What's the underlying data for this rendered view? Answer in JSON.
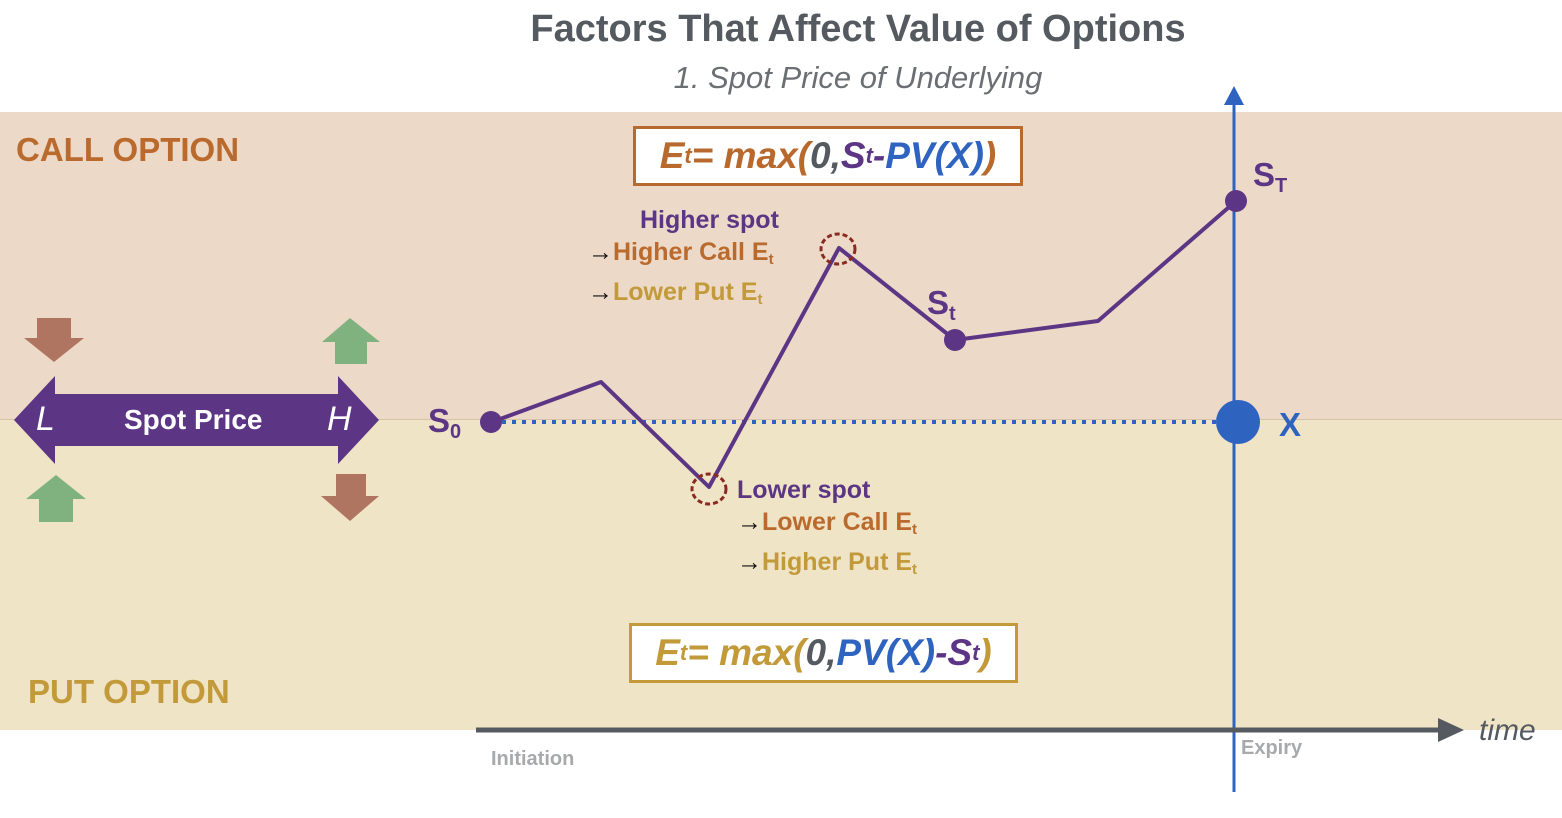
{
  "title": "Factors That Affect Value of Options",
  "subtitle": "1. Spot Price of Underlying",
  "call_zone_label": "CALL OPTION",
  "put_zone_label": "PUT OPTION",
  "call_formula": {
    "prefix": "E",
    "prefix_sub": "t",
    "eq": " = max",
    "open": "(",
    "zero": "0, ",
    "spot": "S",
    "spot_sub": "t",
    "dash": "-",
    "pv": "PV(X)",
    "close": ")"
  },
  "put_formula": {
    "prefix": "E",
    "prefix_sub": "t",
    "eq": " = max",
    "open": "(",
    "zero": "0, ",
    "pv": "PV(X)",
    "dash": "-",
    "spot": "S",
    "spot_sub": "t",
    "close": ")"
  },
  "higher_note": {
    "line1": "Higher spot",
    "arrow": "→",
    "line2": "Higher Call E",
    "line2_sub": "t",
    "line3": "Lower Put E",
    "line3_sub": "t"
  },
  "lower_note": {
    "line1": "Lower spot",
    "arrow": "→",
    "line2": "Lower Call E",
    "line2_sub": "t",
    "line3": "Higher Put E",
    "line3_sub": "t"
  },
  "points": {
    "s0": {
      "main": "S",
      "sub": "0"
    },
    "st": {
      "main": "S",
      "sub": "t"
    },
    "sT": {
      "main": "S",
      "sub": "T"
    },
    "x": "X"
  },
  "axis": {
    "initiation": "Initiation",
    "expiry": "Expiry",
    "time": "time"
  },
  "spot_slider": {
    "label": "Spot Price",
    "low": "L",
    "high": "H"
  },
  "colors": {
    "call_band": "#ecd9c7",
    "put_band": "#efe4c6",
    "purple": "#5c3685",
    "blue": "#2f63c0",
    "call_orange": "#bb6a2e",
    "put_gold": "#c29a3a",
    "up_green": "#7fb27f",
    "down_brown": "#b07560"
  }
}
